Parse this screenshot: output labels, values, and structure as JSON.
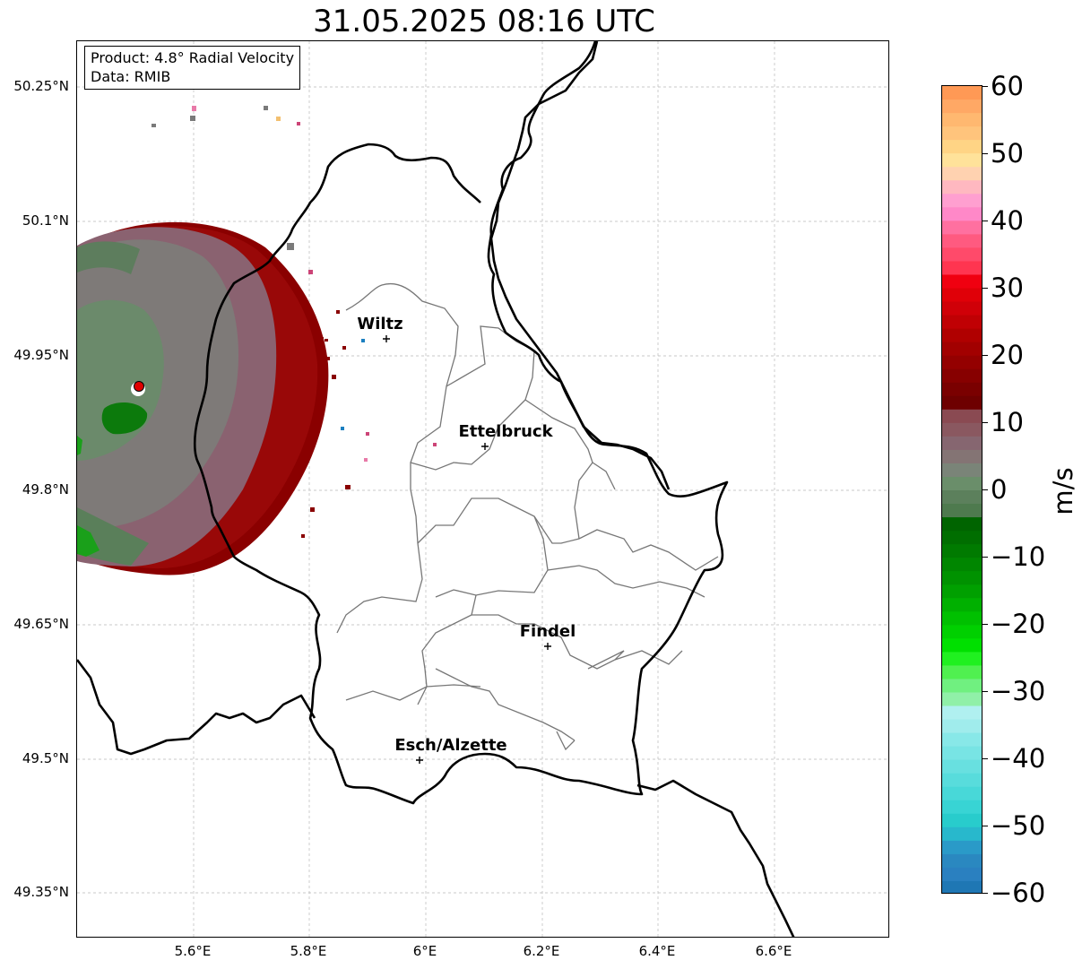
{
  "title": "31.05.2025 08:16 UTC",
  "info_box": {
    "product": "Product: 4.8° Radial Velocity",
    "data": "Data: RMIB"
  },
  "axes": {
    "lat_ticks": [
      "50.25°N",
      "50.1°N",
      "49.95°N",
      "49.8°N",
      "49.65°N",
      "49.5°N",
      "49.35°N"
    ],
    "lon_ticks": [
      "5.6°E",
      "5.8°E",
      "6°E",
      "6.2°E",
      "6.4°E",
      "6.6°E"
    ]
  },
  "cities": [
    {
      "name": "Wiltz"
    },
    {
      "name": "Ettelbruck"
    },
    {
      "name": "Findel"
    },
    {
      "name": "Esch/Alzette"
    }
  ],
  "colorbar": {
    "unit": "m/s",
    "ticks": [
      "60",
      "50",
      "40",
      "30",
      "20",
      "10",
      "0",
      "−10",
      "−20",
      "−30",
      "−40",
      "−50",
      "−60"
    ],
    "range": [
      -60,
      60
    ]
  },
  "icons": {
    "radar_site": "red-dot-marker",
    "city_marker": "plus-marker"
  }
}
